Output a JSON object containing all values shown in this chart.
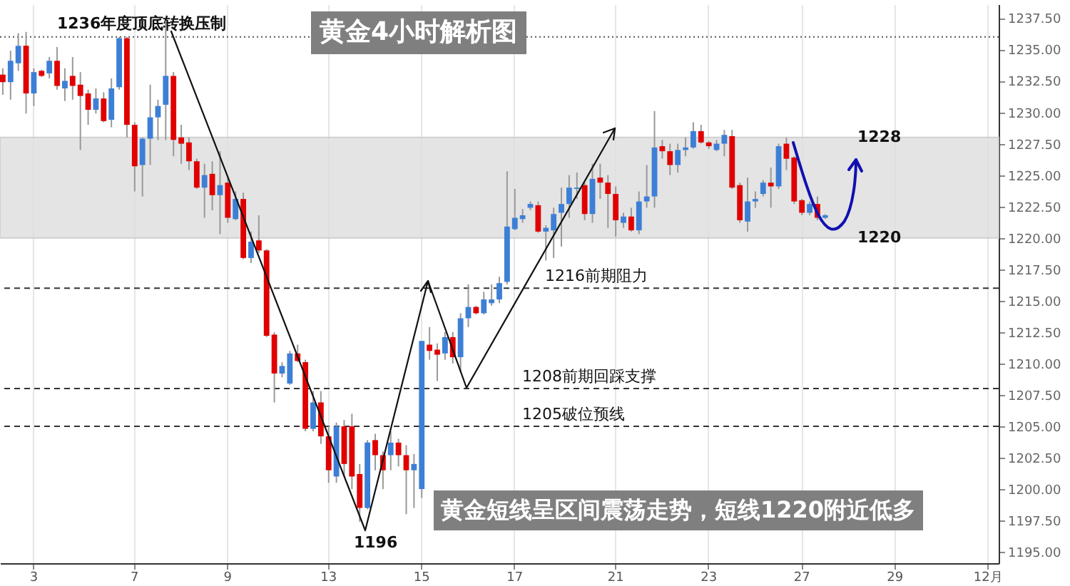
{
  "chart_data": {
    "type": "candlestick",
    "title": "黄金4小时解析图",
    "categories": [
      null,
      null,
      null,
      null,
      "3",
      null,
      null,
      null,
      null,
      null,
      null,
      null,
      null,
      null,
      null,
      null,
      null,
      "7",
      null,
      null,
      null,
      null,
      null,
      null,
      null,
      null,
      null,
      null,
      null,
      "9",
      null,
      null,
      null,
      null,
      null,
      null,
      null,
      null,
      null,
      null,
      null,
      null,
      "13",
      null,
      null,
      null,
      null,
      null,
      null,
      null,
      null,
      null,
      null,
      null,
      "15",
      null,
      null,
      null,
      null,
      null,
      null,
      null,
      null,
      null,
      null,
      null,
      "17",
      null,
      null,
      null,
      null,
      null,
      null,
      null,
      null,
      null,
      null,
      null,
      null,
      "21",
      null,
      null,
      null,
      null,
      null,
      null,
      null,
      null,
      null,
      null,
      null,
      "23",
      null,
      null,
      null,
      null,
      null,
      null,
      null,
      null,
      null,
      null,
      null,
      "27",
      null,
      null,
      null,
      null,
      null,
      null,
      null,
      null,
      null,
      null,
      null,
      "29",
      null,
      null,
      null,
      null,
      null,
      null,
      null,
      null,
      null,
      null,
      null,
      "12月",
      null
    ],
    "ohlc": [
      [
        1233.0,
        1233.5,
        1231.4,
        1232.4
      ],
      [
        1232.4,
        1234.9,
        1231.0,
        1234.1
      ],
      [
        1233.9,
        1236.3,
        1233.3,
        1235.3
      ],
      [
        1235.3,
        1236.4,
        1229.9,
        1231.5
      ],
      [
        1231.5,
        1233.5,
        1230.5,
        1233.2
      ],
      [
        1233.3,
        1233.4,
        1232.8,
        1232.9
      ],
      [
        1233.1,
        1234.4,
        1232.7,
        1234.1
      ],
      [
        1234.1,
        1235.2,
        1231.8,
        1232.1
      ],
      [
        1231.9,
        1233.5,
        1230.9,
        1232.5
      ],
      [
        1232.9,
        1234.4,
        1231.0,
        1232.1
      ],
      [
        1232.2,
        1233.2,
        1227.0,
        1231.3
      ],
      [
        1231.5,
        1231.8,
        1229.0,
        1230.2
      ],
      [
        1230.2,
        1231.9,
        1229.9,
        1231.1
      ],
      [
        1231.1,
        1231.6,
        1229.2,
        1229.3
      ],
      [
        1229.4,
        1232.7,
        1228.8,
        1231.9
      ],
      [
        1232.0,
        1236.0,
        1231.8,
        1235.9
      ],
      [
        1235.9,
        1236.0,
        1228.0,
        1229.0
      ],
      [
        1229.0,
        1229.2,
        1223.7,
        1225.7
      ],
      [
        1225.8,
        1228.0,
        1223.3,
        1227.9
      ],
      [
        1227.9,
        1232.2,
        1225.8,
        1229.6
      ],
      [
        1229.6,
        1231.0,
        1227.8,
        1230.5
      ],
      [
        1230.6,
        1237.3,
        1227.8,
        1232.9
      ],
      [
        1232.9,
        1233.2,
        1226.5,
        1227.8
      ],
      [
        1228.0,
        1229.0,
        1225.9,
        1227.5
      ],
      [
        1227.6,
        1228.0,
        1225.4,
        1226.1
      ],
      [
        1226.1,
        1226.3,
        1223.9,
        1224.0
      ],
      [
        1224.0,
        1225.9,
        1221.6,
        1225.0
      ],
      [
        1225.1,
        1226.1,
        1222.2,
        1223.4
      ],
      [
        1223.4,
        1226.9,
        1220.3,
        1224.2
      ],
      [
        1224.4,
        1224.8,
        1221.2,
        1221.6
      ],
      [
        1221.5,
        1223.7,
        1221.4,
        1223.1
      ],
      [
        1223.1,
        1223.6,
        1218.3,
        1218.4
      ],
      [
        1218.4,
        1220.5,
        1218.0,
        1219.7
      ],
      [
        1219.8,
        1221.8,
        1218.8,
        1219.0
      ],
      [
        1219.0,
        1219.1,
        1212.1,
        1212.2
      ],
      [
        1212.3,
        1212.5,
        1206.9,
        1209.2
      ],
      [
        1209.2,
        1210.1,
        1208.9,
        1209.8
      ],
      [
        1208.4,
        1211.0,
        1208.3,
        1210.8
      ],
      [
        1210.8,
        1211.5,
        1210.1,
        1210.2
      ],
      [
        1210.1,
        1210.3,
        1204.6,
        1204.8
      ],
      [
        1204.8,
        1207.8,
        1204.6,
        1206.9
      ],
      [
        1206.9,
        1207.8,
        1203.6,
        1204.2
      ],
      [
        1204.2,
        1205.0,
        1200.5,
        1201.5
      ],
      [
        1201.0,
        1205.3,
        1200.5,
        1205.0
      ],
      [
        1205.0,
        1205.5,
        1201.0,
        1202.0
      ],
      [
        1205.0,
        1206.0,
        1200.0,
        1201.0
      ],
      [
        1201.2,
        1202.0,
        1197.4,
        1198.5
      ],
      [
        1198.5,
        1203.9,
        1198.4,
        1203.7
      ],
      [
        1203.9,
        1204.4,
        1201.5,
        1202.7
      ],
      [
        1202.7,
        1203.0,
        1200.0,
        1201.5
      ],
      [
        1202.7,
        1204.6,
        1201.5,
        1203.7
      ],
      [
        1203.7,
        1204.0,
        1201.8,
        1202.7
      ],
      [
        1202.7,
        1203.5,
        1198.0,
        1201.5
      ],
      [
        1201.5,
        1202.8,
        1198.5,
        1202.0
      ],
      [
        1200.0,
        1211.8,
        1199.3,
        1211.8
      ],
      [
        1211.5,
        1212.9,
        1210.3,
        1211.0
      ],
      [
        1211.1,
        1211.6,
        1208.6,
        1210.7
      ],
      [
        1210.8,
        1212.5,
        1210.3,
        1212.1
      ],
      [
        1212.1,
        1212.5,
        1210.0,
        1210.5
      ],
      [
        1210.5,
        1214.0,
        1209.3,
        1213.6
      ],
      [
        1213.6,
        1216.3,
        1212.9,
        1214.5
      ],
      [
        1214.5,
        1214.6,
        1213.9,
        1214.0
      ],
      [
        1214.0,
        1215.7,
        1213.9,
        1215.1
      ],
      [
        1214.8,
        1216.3,
        1214.6,
        1215.1
      ],
      [
        1215.1,
        1216.9,
        1214.8,
        1216.4
      ],
      [
        1216.5,
        1225.3,
        1216.3,
        1220.9
      ],
      [
        1220.7,
        1223.9,
        1220.6,
        1221.6
      ],
      [
        1221.5,
        1222.3,
        1221.2,
        1221.8
      ],
      [
        1222.4,
        1222.9,
        1222.2,
        1222.7
      ],
      [
        1222.6,
        1222.9,
        1220.4,
        1220.5
      ],
      [
        1220.5,
        1221.0,
        1218.2,
        1220.8
      ],
      [
        1220.6,
        1222.4,
        1218.4,
        1221.9
      ],
      [
        1222.0,
        1224.0,
        1219.3,
        1222.7
      ],
      [
        1222.7,
        1225.0,
        1221.6,
        1224.0
      ],
      [
        1223.9,
        1225.2,
        1223.1,
        1224.0
      ],
      [
        1224.2,
        1224.4,
        1221.4,
        1221.9
      ],
      [
        1221.9,
        1225.9,
        1221.2,
        1224.7
      ],
      [
        1224.8,
        1225.9,
        1223.1,
        1224.4
      ],
      [
        1224.4,
        1225.0,
        1220.8,
        1223.5
      ],
      [
        1223.5,
        1224.1,
        1220.1,
        1221.4
      ],
      [
        1221.2,
        1222.0,
        1220.8,
        1221.7
      ],
      [
        1221.7,
        1222.4,
        1220.5,
        1220.6
      ],
      [
        1220.6,
        1223.7,
        1220.3,
        1222.9
      ],
      [
        1222.9,
        1225.8,
        1222.4,
        1223.3
      ],
      [
        1223.3,
        1230.1,
        1222.4,
        1227.2
      ],
      [
        1227.3,
        1227.8,
        1226.3,
        1226.9
      ],
      [
        1226.9,
        1227.5,
        1225.0,
        1225.8
      ],
      [
        1225.8,
        1227.5,
        1225.2,
        1227.0
      ],
      [
        1227.0,
        1228.0,
        1226.5,
        1227.2
      ],
      [
        1227.2,
        1229.2,
        1227.1,
        1228.5
      ],
      [
        1228.5,
        1229.0,
        1227.5,
        1227.6
      ],
      [
        1227.6,
        1227.7,
        1227.1,
        1227.3
      ],
      [
        1227.0,
        1227.8,
        1226.9,
        1227.5
      ],
      [
        1227.5,
        1228.6,
        1226.5,
        1228.2
      ],
      [
        1228.1,
        1228.6,
        1223.9,
        1224.0
      ],
      [
        1224.2,
        1224.4,
        1221.2,
        1221.4
      ],
      [
        1221.3,
        1224.8,
        1220.5,
        1222.9
      ],
      [
        1222.9,
        1223.7,
        1222.4,
        1223.1
      ],
      [
        1223.5,
        1224.6,
        1223.3,
        1224.4
      ],
      [
        1224.4,
        1225.6,
        1222.4,
        1224.1
      ],
      [
        1224.1,
        1227.5,
        1223.9,
        1227.3
      ],
      [
        1227.5,
        1228.0,
        1225.4,
        1226.3
      ],
      [
        1226.4,
        1226.5,
        1222.7,
        1222.9
      ],
      [
        1223.0,
        1223.1,
        1221.8,
        1222.0
      ],
      [
        1222.0,
        1222.9,
        1221.8,
        1222.7
      ],
      [
        1222.7,
        1223.3,
        1221.4,
        1221.6
      ],
      [
        1221.6,
        1221.9,
        1221.5,
        1221.8
      ],
      null,
      null,
      null,
      null,
      null,
      null,
      null,
      null,
      null,
      null,
      null,
      null,
      null,
      null,
      null,
      null,
      null,
      null,
      null,
      null,
      null,
      null
    ],
    "colors": [
      "#e00000",
      "#3d7fd6",
      "#3d7fd6",
      "#e00000",
      "#3d7fd6",
      "#e00000",
      "#3d7fd6",
      "#e00000",
      "#3d7fd6",
      "#e00000",
      "#e00000",
      "#e00000",
      "#3d7fd6",
      "#e00000",
      "#3d7fd6",
      "#3d7fd6",
      "#e00000",
      "#e00000",
      "#3d7fd6",
      "#3d7fd6",
      "#3d7fd6",
      "#3d7fd6",
      "#e00000",
      "#e00000",
      "#e00000",
      "#e00000",
      "#3d7fd6",
      "#e00000",
      "#3d7fd6",
      "#e00000",
      "#3d7fd6",
      "#e00000",
      "#3d7fd6",
      "#e00000",
      "#e00000",
      "#e00000",
      "#3d7fd6",
      "#3d7fd6",
      "#e00000",
      "#e00000",
      "#3d7fd6",
      "#e00000",
      "#e00000",
      "#3d7fd6",
      "#e00000",
      "#e00000",
      "#e00000",
      "#3d7fd6",
      "#e00000",
      "#e00000",
      "#3d7fd6",
      "#e00000",
      "#e00000",
      "#3d7fd6",
      "#3d7fd6",
      "#e00000",
      "#e00000",
      "#3d7fd6",
      "#e00000",
      "#3d7fd6",
      "#3d7fd6",
      "#e00000",
      "#3d7fd6",
      "#3d7fd6",
      "#3d7fd6",
      "#3d7fd6",
      "#3d7fd6",
      "#3d7fd6",
      "#3d7fd6",
      "#e00000",
      "#3d7fd6",
      "#3d7fd6",
      "#3d7fd6",
      "#3d7fd6",
      "#3d7fd6",
      "#e00000",
      "#3d7fd6",
      "#e00000",
      "#e00000",
      "#e00000",
      "#3d7fd6",
      "#e00000",
      "#3d7fd6",
      "#3d7fd6",
      "#3d7fd6",
      "#e00000",
      "#e00000",
      "#3d7fd6",
      "#3d7fd6",
      "#3d7fd6",
      "#e00000",
      "#e00000",
      "#3d7fd6",
      "#3d7fd6",
      "#e00000",
      "#e00000",
      "#3d7fd6",
      "#3d7fd6",
      "#3d7fd6",
      "#e00000",
      "#3d7fd6",
      "#e00000",
      "#e00000",
      "#e00000",
      "#3d7fd6",
      "#e00000",
      "#3d7fd6",
      null,
      null,
      null,
      null,
      null,
      null,
      null,
      null,
      null,
      null,
      null,
      null,
      null,
      null,
      null,
      null,
      null,
      null,
      null,
      null,
      null,
      null
    ],
    "ylim": [
      1194.1,
      1238.6
    ],
    "yticks": [
      {
        "value": 1195,
        "label": "1195.00"
      },
      {
        "value": 1197.5,
        "label": "1197.50"
      },
      {
        "value": 1200,
        "label": "1200.00"
      },
      {
        "value": 1202.5,
        "label": "1202.50"
      },
      {
        "value": 1205,
        "label": "1205.00"
      },
      {
        "value": 1207.5,
        "label": "1207.50"
      },
      {
        "value": 1210,
        "label": "1210.00"
      },
      {
        "value": 1212.5,
        "label": "1212.50"
      },
      {
        "value": 1215,
        "label": "1215.00"
      },
      {
        "value": 1217.5,
        "label": "1217.50"
      },
      {
        "value": 1220,
        "label": "1220.00"
      },
      {
        "value": 1222.5,
        "label": "1222.50"
      },
      {
        "value": 1225,
        "label": "1225.00"
      },
      {
        "value": 1227.5,
        "label": "1227.50"
      },
      {
        "value": 1230,
        "label": "1230.00"
      },
      {
        "value": 1232.5,
        "label": "1232.50"
      },
      {
        "value": 1235,
        "label": "1235.00"
      },
      {
        "value": 1237.5,
        "label": "1237.50"
      }
    ],
    "grid": "x",
    "bands": [
      {
        "axis": "y",
        "from": 1220,
        "to": 1228,
        "color": "#e0e0e0"
      }
    ],
    "ref_lines": [
      {
        "axis": "y",
        "value": 1236,
        "label": "1236年度顶底转换压制",
        "line_style": "dotted",
        "color": "#555555"
      },
      {
        "axis": "y",
        "value": 1216,
        "label": "1216前期阻力",
        "line_style": "dashed",
        "color": "#333333"
      },
      {
        "axis": "y",
        "value": 1208,
        "label": "1208前期回踩支撑",
        "line_style": "dashed",
        "color": "#333333"
      },
      {
        "axis": "y",
        "value": 1205,
        "label": "1205破位预线",
        "line_style": "dashed",
        "color": "#333333"
      }
    ],
    "annotations": [
      "1196",
      {
        "text": "1228",
        "y": 1228
      },
      {
        "text": "1220",
        "y": 1220
      },
      "黄金短线呈区间震荡走势，短线1220附近低多"
    ]
  }
}
